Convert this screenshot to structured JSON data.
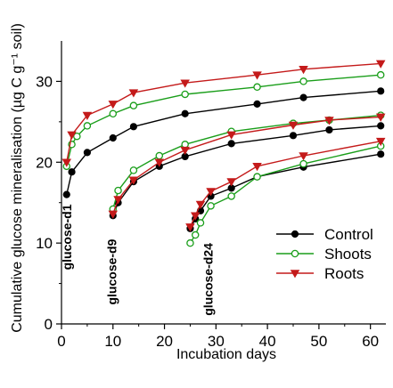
{
  "chart_data": {
    "type": "line",
    "xlabel": "Incubation days",
    "ylabel": "Cumulative glucose mineralisation (µg C g⁻¹ soil)",
    "xlim": [
      0,
      63
    ],
    "ylim": [
      0,
      35
    ],
    "xticks": [
      0,
      10,
      20,
      30,
      40,
      50,
      60
    ],
    "yticks": [
      0,
      10,
      20,
      30
    ],
    "grid": false,
    "legend_position": "right",
    "annotations": [
      {
        "text": "glucose-d1",
        "x": 1,
        "y_top": 14.8
      },
      {
        "text": "glucose-d9",
        "x": 9.8,
        "y_top": 10.5
      },
      {
        "text": "glucose-d24",
        "x": 28.5,
        "y_top": 10.0
      }
    ],
    "series": [
      {
        "name": "Control",
        "color": "#000000",
        "marker": "filled-circle",
        "segments": [
          {
            "x": [
              1,
              2,
              5,
              10,
              14,
              24,
              38,
              47,
              62
            ],
            "y": [
              16.0,
              18.8,
              21.2,
              23.0,
              24.4,
              26.0,
              27.2,
              28.0,
              28.8
            ]
          },
          {
            "x": [
              10,
              11,
              14,
              19,
              24,
              33,
              45,
              52,
              62
            ],
            "y": [
              13.4,
              15.0,
              17.6,
              19.5,
              20.7,
              22.3,
              23.3,
              24.0,
              24.5
            ]
          },
          {
            "x": [
              25,
              26,
              27,
              29,
              33,
              38,
              47,
              62
            ],
            "y": [
              11.8,
              13.0,
              14.0,
              15.8,
              16.8,
              18.2,
              19.4,
              21.0
            ]
          }
        ]
      },
      {
        "name": "Shoots",
        "color": "#1a9e1a",
        "marker": "open-circle",
        "segments": [
          {
            "x": [
              1,
              2,
              3,
              5,
              10,
              14,
              24,
              38,
              47,
              62
            ],
            "y": [
              19.5,
              22.2,
              23.2,
              24.5,
              26.0,
              27.0,
              28.4,
              29.3,
              30.0,
              30.8
            ]
          },
          {
            "x": [
              10,
              11,
              14,
              19,
              24,
              33,
              45,
              52,
              62
            ],
            "y": [
              14.2,
              16.5,
              19.0,
              20.8,
              22.2,
              23.8,
              24.8,
              25.2,
              25.8
            ]
          },
          {
            "x": [
              25,
              26,
              27,
              29,
              33,
              38,
              47,
              62
            ],
            "y": [
              10.0,
              11.0,
              12.5,
              14.6,
              15.8,
              18.2,
              19.8,
              22.0
            ]
          }
        ]
      },
      {
        "name": "Roots",
        "color": "#c41a1a",
        "marker": "filled-triangle-down",
        "segments": [
          {
            "x": [
              1,
              2,
              5,
              10,
              14,
              24,
              38,
              47,
              62
            ],
            "y": [
              20.0,
              23.4,
              25.8,
              27.2,
              28.6,
              29.8,
              30.8,
              31.5,
              32.2
            ]
          },
          {
            "x": [
              10,
              11,
              14,
              19,
              24,
              33,
              45,
              52,
              62
            ],
            "y": [
              13.6,
              15.4,
              17.8,
              20.0,
              21.5,
              23.4,
              24.6,
              25.2,
              25.6
            ]
          },
          {
            "x": [
              25,
              26,
              27,
              29,
              33,
              38,
              47,
              62
            ],
            "y": [
              12.0,
              13.4,
              14.8,
              16.4,
              17.6,
              19.5,
              20.8,
              22.6
            ]
          }
        ]
      }
    ]
  }
}
